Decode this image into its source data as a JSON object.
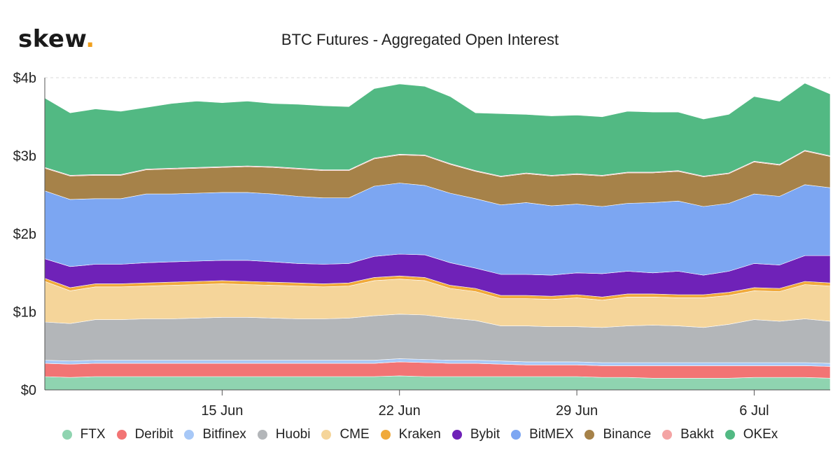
{
  "brand": {
    "name": "skew",
    "dot": "."
  },
  "chart_data": {
    "type": "area",
    "stacked": true,
    "title": "BTC Futures - Aggregated Open Interest",
    "xlabel": "",
    "ylabel": "",
    "ylim": [
      0,
      4
    ],
    "yticks": [
      {
        "value": 0,
        "label": "$0"
      },
      {
        "value": 1,
        "label": "$1b"
      },
      {
        "value": 2,
        "label": "$2b"
      },
      {
        "value": 3,
        "label": "$3b"
      },
      {
        "value": 4,
        "label": "$4b"
      }
    ],
    "x": [
      "2020-06-08",
      "2020-06-09",
      "2020-06-10",
      "2020-06-11",
      "2020-06-12",
      "2020-06-13",
      "2020-06-14",
      "2020-06-15",
      "2020-06-16",
      "2020-06-17",
      "2020-06-18",
      "2020-06-19",
      "2020-06-20",
      "2020-06-21",
      "2020-06-22",
      "2020-06-23",
      "2020-06-24",
      "2020-06-25",
      "2020-06-26",
      "2020-06-27",
      "2020-06-28",
      "2020-06-29",
      "2020-06-30",
      "2020-07-01",
      "2020-07-02",
      "2020-07-03",
      "2020-07-04",
      "2020-07-05",
      "2020-07-06",
      "2020-07-07",
      "2020-07-08",
      "2020-07-09"
    ],
    "xticks": [
      {
        "date": "2020-06-15",
        "label": "15 Jun"
      },
      {
        "date": "2020-06-22",
        "label": "22 Jun"
      },
      {
        "date": "2020-06-29",
        "label": "29 Jun"
      },
      {
        "date": "2020-07-06",
        "label": "6 Jul"
      }
    ],
    "grid": true,
    "legend_position": "bottom",
    "series": [
      {
        "name": "FTX",
        "color": "#8fd4b0",
        "values": [
          0.17,
          0.16,
          0.17,
          0.17,
          0.17,
          0.17,
          0.17,
          0.17,
          0.17,
          0.17,
          0.17,
          0.17,
          0.17,
          0.17,
          0.18,
          0.17,
          0.17,
          0.17,
          0.17,
          0.17,
          0.17,
          0.17,
          0.16,
          0.16,
          0.15,
          0.15,
          0.15,
          0.15,
          0.16,
          0.16,
          0.16,
          0.15
        ]
      },
      {
        "name": "Deribit",
        "color": "#f27474",
        "values": [
          0.17,
          0.17,
          0.17,
          0.17,
          0.17,
          0.17,
          0.17,
          0.17,
          0.17,
          0.17,
          0.17,
          0.17,
          0.17,
          0.17,
          0.18,
          0.18,
          0.17,
          0.17,
          0.16,
          0.15,
          0.15,
          0.15,
          0.15,
          0.15,
          0.16,
          0.16,
          0.16,
          0.16,
          0.15,
          0.15,
          0.15,
          0.15
        ]
      },
      {
        "name": "Bitfinex",
        "color": "#a7c8f7",
        "values": [
          0.04,
          0.04,
          0.04,
          0.04,
          0.04,
          0.04,
          0.04,
          0.04,
          0.04,
          0.04,
          0.04,
          0.04,
          0.04,
          0.04,
          0.04,
          0.04,
          0.04,
          0.04,
          0.04,
          0.04,
          0.04,
          0.04,
          0.04,
          0.04,
          0.04,
          0.04,
          0.04,
          0.04,
          0.04,
          0.04,
          0.04,
          0.04
        ]
      },
      {
        "name": "Huobi",
        "color": "#b3b6b9",
        "values": [
          0.49,
          0.48,
          0.52,
          0.52,
          0.53,
          0.53,
          0.54,
          0.55,
          0.55,
          0.54,
          0.53,
          0.53,
          0.54,
          0.57,
          0.57,
          0.57,
          0.54,
          0.51,
          0.45,
          0.46,
          0.45,
          0.45,
          0.45,
          0.47,
          0.48,
          0.47,
          0.45,
          0.49,
          0.55,
          0.53,
          0.56,
          0.54
        ]
      },
      {
        "name": "CME",
        "color": "#f5d59a",
        "values": [
          0.52,
          0.42,
          0.42,
          0.42,
          0.42,
          0.43,
          0.43,
          0.43,
          0.42,
          0.42,
          0.42,
          0.41,
          0.41,
          0.45,
          0.45,
          0.44,
          0.38,
          0.37,
          0.35,
          0.35,
          0.35,
          0.37,
          0.35,
          0.37,
          0.36,
          0.36,
          0.38,
          0.37,
          0.37,
          0.38,
          0.44,
          0.45
        ]
      },
      {
        "name": "Kraken",
        "color": "#f0a93a",
        "values": [
          0.04,
          0.04,
          0.04,
          0.04,
          0.04,
          0.04,
          0.04,
          0.04,
          0.04,
          0.04,
          0.04,
          0.04,
          0.04,
          0.04,
          0.04,
          0.04,
          0.04,
          0.04,
          0.04,
          0.04,
          0.04,
          0.04,
          0.04,
          0.04,
          0.04,
          0.04,
          0.04,
          0.04,
          0.04,
          0.04,
          0.04,
          0.04
        ]
      },
      {
        "name": "Bybit",
        "color": "#6f22b8",
        "values": [
          0.25,
          0.27,
          0.25,
          0.25,
          0.26,
          0.26,
          0.26,
          0.26,
          0.27,
          0.26,
          0.25,
          0.25,
          0.25,
          0.27,
          0.28,
          0.29,
          0.29,
          0.26,
          0.27,
          0.27,
          0.27,
          0.28,
          0.3,
          0.29,
          0.27,
          0.3,
          0.25,
          0.27,
          0.31,
          0.3,
          0.33,
          0.35
        ]
      },
      {
        "name": "BitMEX",
        "color": "#7ca6f2",
        "values": [
          0.87,
          0.86,
          0.84,
          0.84,
          0.88,
          0.87,
          0.87,
          0.87,
          0.87,
          0.87,
          0.86,
          0.85,
          0.84,
          0.9,
          0.91,
          0.89,
          0.89,
          0.89,
          0.89,
          0.92,
          0.89,
          0.88,
          0.86,
          0.87,
          0.9,
          0.9,
          0.88,
          0.87,
          0.89,
          0.88,
          0.91,
          0.87
        ]
      },
      {
        "name": "Binance",
        "color": "#a68249",
        "values": [
          0.29,
          0.3,
          0.3,
          0.3,
          0.31,
          0.32,
          0.32,
          0.32,
          0.33,
          0.34,
          0.35,
          0.35,
          0.35,
          0.35,
          0.36,
          0.38,
          0.37,
          0.35,
          0.36,
          0.37,
          0.38,
          0.38,
          0.39,
          0.39,
          0.38,
          0.38,
          0.38,
          0.38,
          0.41,
          0.4,
          0.43,
          0.4
        ]
      },
      {
        "name": "Bakkt",
        "color": "#f4a4a4",
        "values": [
          0.01,
          0.01,
          0.01,
          0.01,
          0.01,
          0.01,
          0.01,
          0.01,
          0.01,
          0.01,
          0.01,
          0.01,
          0.01,
          0.01,
          0.01,
          0.01,
          0.01,
          0.01,
          0.01,
          0.01,
          0.01,
          0.01,
          0.01,
          0.01,
          0.01,
          0.01,
          0.01,
          0.01,
          0.01,
          0.01,
          0.01,
          0.01
        ]
      },
      {
        "name": "OKEx",
        "color": "#52b983",
        "values": [
          0.89,
          0.8,
          0.84,
          0.81,
          0.79,
          0.83,
          0.85,
          0.82,
          0.83,
          0.81,
          0.82,
          0.82,
          0.81,
          0.89,
          0.9,
          0.88,
          0.86,
          0.74,
          0.8,
          0.75,
          0.76,
          0.75,
          0.75,
          0.78,
          0.77,
          0.75,
          0.73,
          0.75,
          0.83,
          0.81,
          0.86,
          0.79
        ]
      }
    ]
  }
}
